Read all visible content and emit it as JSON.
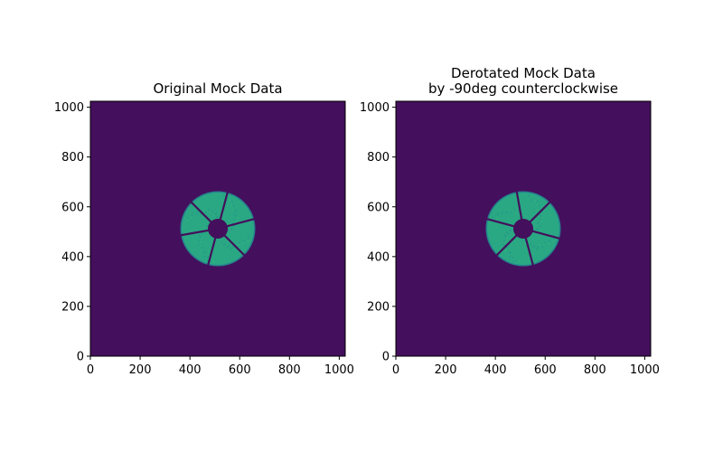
{
  "chart_data": [
    {
      "type": "heatmap",
      "title": "Original Mock Data",
      "xlabel": "",
      "ylabel": "",
      "xlim": [
        0,
        1024
      ],
      "ylim": [
        0,
        1024
      ],
      "xticks": [
        "0",
        "200",
        "400",
        "600",
        "800",
        "1000"
      ],
      "yticks": [
        "0",
        "200",
        "400",
        "600",
        "800",
        "1000"
      ],
      "colormap": "viridis",
      "background_value_color": "#440f5c",
      "pupil": {
        "center": [
          512,
          512
        ],
        "outer_radius": 148,
        "inner_radius": 40,
        "color": "#2aa883",
        "edge_color": "#25808e",
        "spider_angles_deg": [
          15,
          75,
          135,
          190,
          255,
          315
        ]
      }
    },
    {
      "type": "heatmap",
      "title": "Derotated Mock Data\nby -90deg counterclockwise",
      "title_lines": [
        "Derotated Mock Data",
        "by -90deg counterclockwise"
      ],
      "xlabel": "",
      "ylabel": "",
      "xlim": [
        0,
        1024
      ],
      "ylim": [
        0,
        1024
      ],
      "xticks": [
        "0",
        "200",
        "400",
        "600",
        "800",
        "1000"
      ],
      "yticks": [
        "0",
        "200",
        "400",
        "600",
        "800",
        "1000"
      ],
      "colormap": "viridis",
      "background_value_color": "#440f5c",
      "pupil": {
        "center": [
          512,
          512
        ],
        "outer_radius": 148,
        "inner_radius": 40,
        "color": "#2aa883",
        "edge_color": "#25808e",
        "spider_angles_deg": [
          285,
          345,
          45,
          100,
          165,
          225
        ]
      }
    }
  ]
}
